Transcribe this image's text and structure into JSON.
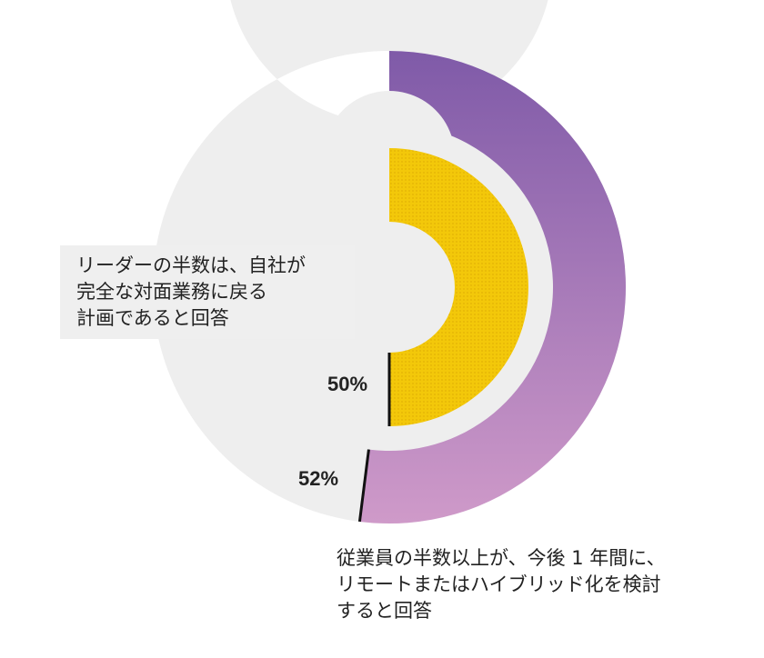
{
  "chart_data": {
    "type": "pie",
    "series": [
      {
        "values": [
          52,
          48
        ],
        "color": "#a678bd",
        "background": "#eeeeee",
        "value_label": "52%"
      },
      {
        "values": [
          50,
          50
        ],
        "color": "#f0c000",
        "background": "#eeeeee",
        "value_label": "50%"
      }
    ],
    "annotations": [
      "リーダーの半数は、自社が\n完全な対面業務に戻る\n計画であると回答",
      "従業員の半数以上が、今後 1 年間に、\nリモートまたはハイブリッド化を検討\nすると回答"
    ]
  }
}
